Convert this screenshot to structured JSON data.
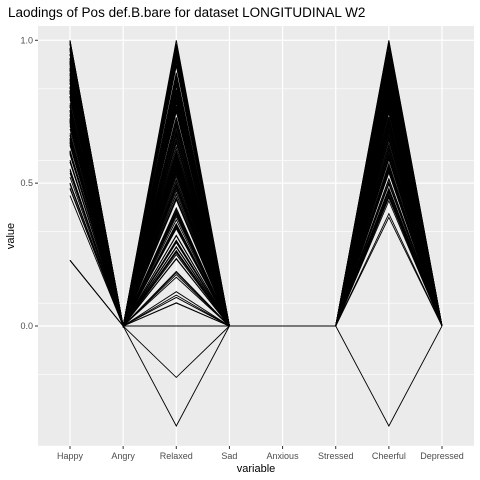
{
  "chart_data": {
    "type": "line",
    "title": "Laodings of Pos def.B.bare for dataset LONGITUDINAL W2",
    "xlabel": "variable",
    "ylabel": "value",
    "categories": [
      "Happy",
      "Angry",
      "Relaxed",
      "Sad",
      "Anxious",
      "Stressed",
      "Cheerful",
      "Depressed"
    ],
    "ylim": [
      -0.42,
      1.05
    ],
    "yticks": [
      {
        "value": 0.0,
        "label": "0.0"
      },
      {
        "value": 0.5,
        "label": "0.5"
      },
      {
        "value": 1.0,
        "label": "1.0"
      }
    ],
    "grid": true,
    "panel_background": "#ebebeb",
    "grid_color": "#ffffff",
    "line_color": "#000000",
    "generated_profiles": {
      "count": 140,
      "happy_range": [
        0.45,
        1.0
      ],
      "relaxed_range": [
        0.08,
        1.0
      ],
      "cheerful_range": [
        0.38,
        1.0
      ],
      "angry": 0,
      "sad": 0,
      "anxious": 0,
      "stressed": 0,
      "depressed": 0
    },
    "series": [
      {
        "values": [
          0.23,
          0,
          0.0,
          0,
          0,
          0,
          -0.35,
          0
        ]
      },
      {
        "values": [
          0.23,
          0,
          -0.18,
          0,
          0,
          0,
          0.38,
          0
        ]
      },
      {
        "values": [
          0.23,
          0,
          -0.35,
          0,
          0,
          0,
          0.45,
          0
        ]
      },
      {
        "values": [
          1.0,
          0,
          1.0,
          0,
          0,
          0,
          1.0,
          0
        ]
      },
      {
        "values": [
          0.95,
          0,
          0.95,
          0,
          0,
          0,
          0.98,
          0
        ]
      },
      {
        "values": [
          0.48,
          0,
          0.08,
          0,
          0,
          0,
          0.45,
          0
        ]
      },
      {
        "values": [
          0.5,
          0,
          0.1,
          0,
          0,
          0,
          0.5,
          0
        ]
      },
      {
        "values": [
          0.55,
          0,
          0.12,
          0,
          0,
          0,
          0.55,
          0
        ]
      },
      {
        "values": [
          0.6,
          0,
          0.18,
          0,
          0,
          0,
          0.6,
          0
        ]
      },
      {
        "values": [
          0.65,
          0,
          0.25,
          0,
          0,
          0,
          0.65,
          0
        ]
      },
      {
        "values": [
          0.7,
          0,
          0.3,
          0,
          0,
          0,
          0.7,
          0
        ]
      },
      {
        "values": [
          0.75,
          0,
          0.35,
          0,
          0,
          0,
          0.75,
          0
        ]
      },
      {
        "values": [
          0.8,
          0,
          0.4,
          0,
          0,
          0,
          0.8,
          0
        ]
      },
      {
        "values": [
          0.85,
          0,
          0.45,
          0,
          0,
          0,
          0.85,
          0
        ]
      },
      {
        "values": [
          0.9,
          0,
          0.5,
          0,
          0,
          0,
          0.9,
          0
        ]
      }
    ]
  }
}
